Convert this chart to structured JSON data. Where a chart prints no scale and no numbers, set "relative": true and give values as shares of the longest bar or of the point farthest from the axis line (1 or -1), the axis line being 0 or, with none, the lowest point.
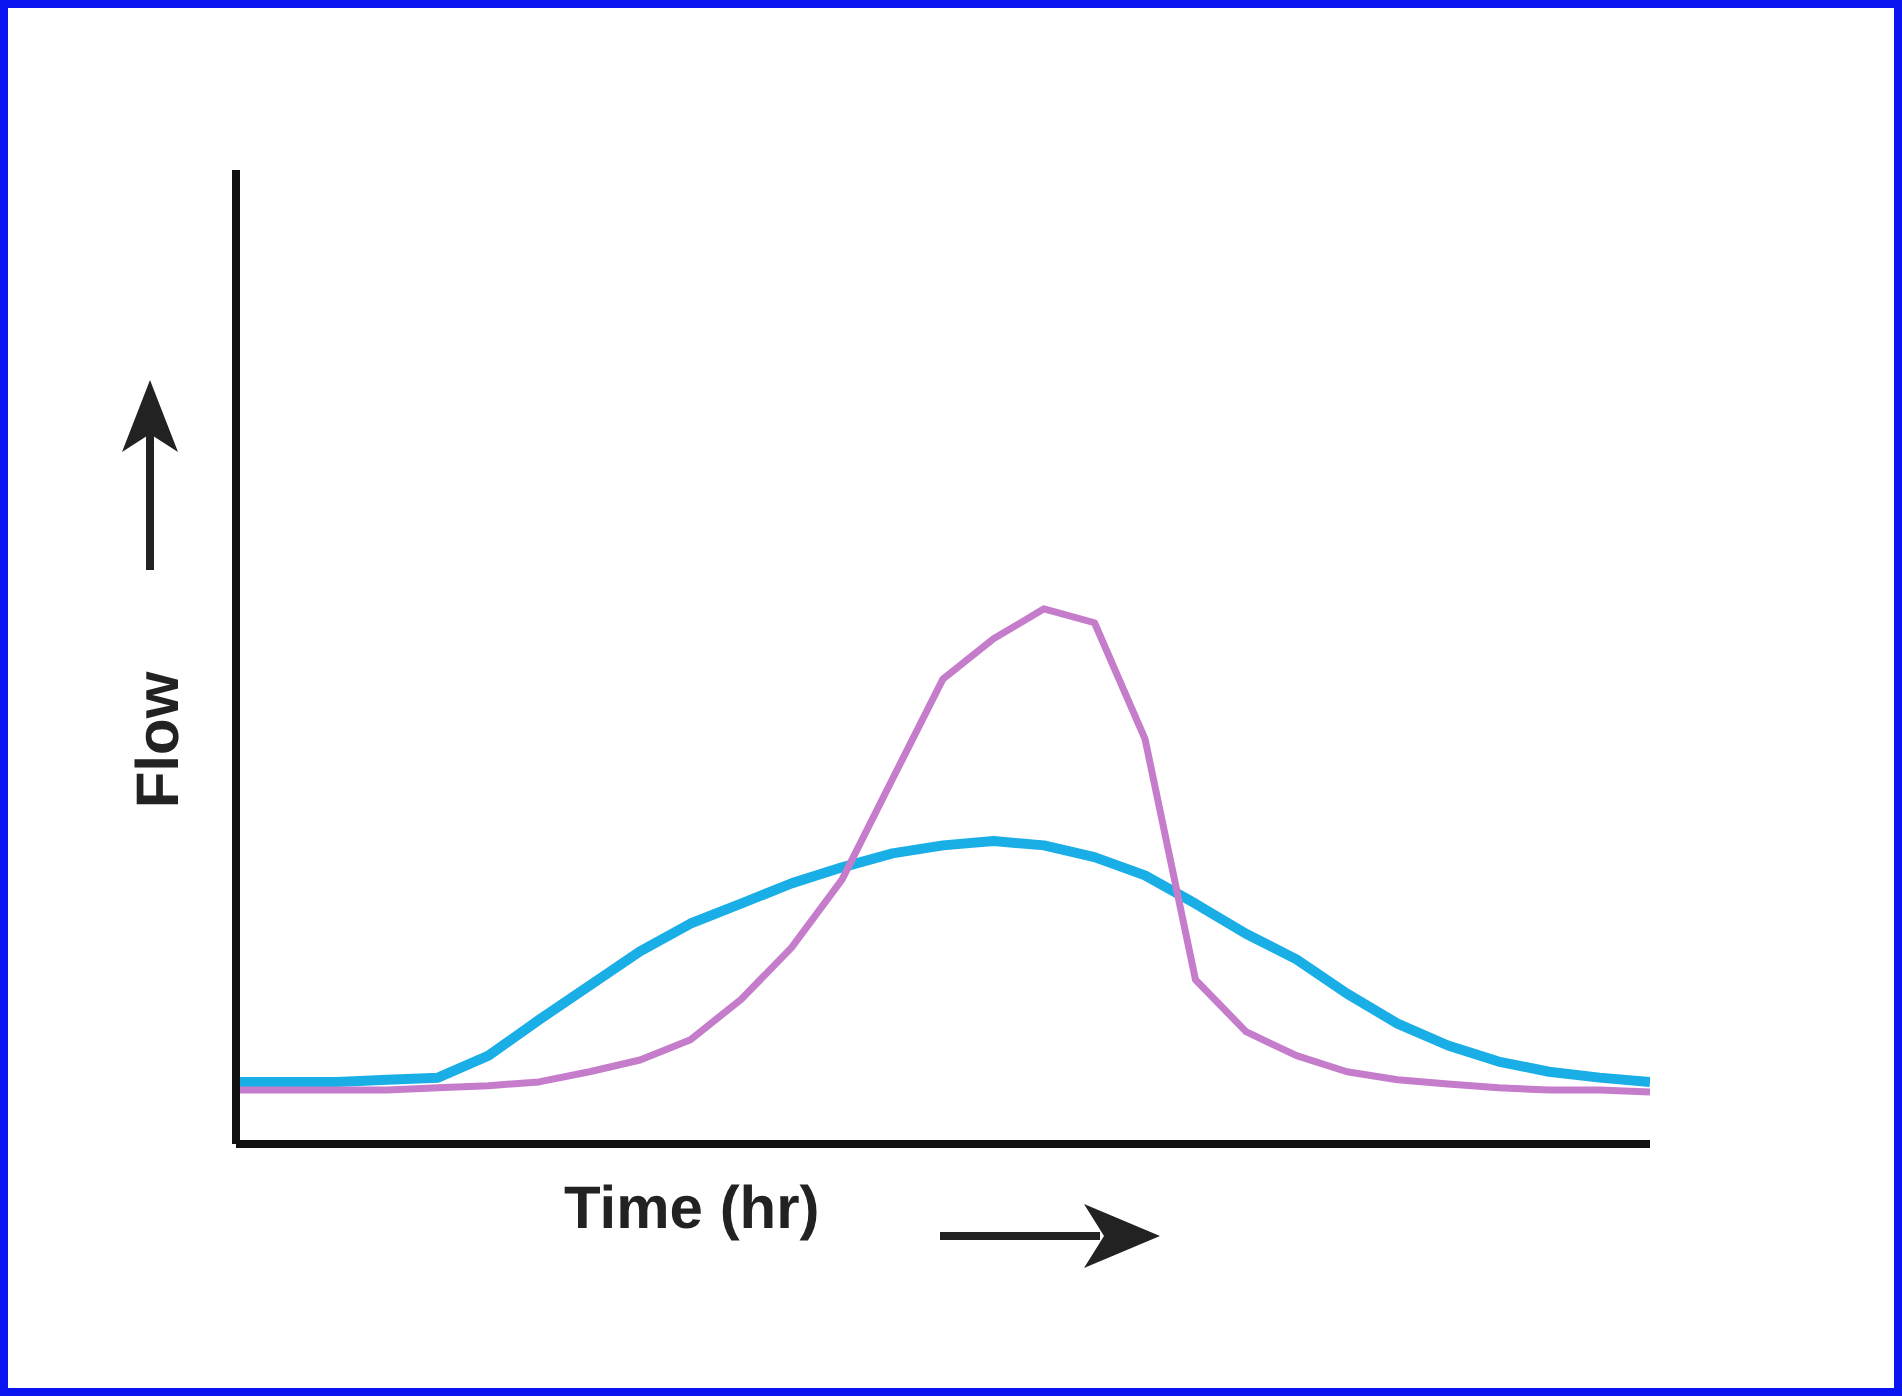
{
  "chart_data": {
    "type": "line",
    "relative": true,
    "xlabel": "Time (hr)",
    "ylabel": "Flow",
    "categories": [
      null,
      null,
      null,
      null,
      null,
      null,
      null,
      null,
      null,
      null,
      null,
      null,
      null,
      null,
      null,
      null,
      null,
      null,
      null,
      null,
      null,
      null,
      null,
      null,
      null,
      null,
      null,
      null,
      null
    ],
    "series": [
      {
        "color": "#1aaee6",
        "values": [
          0.116,
          0.116,
          0.116,
          0.12,
          0.124,
          0.165,
          0.232,
          0.296,
          0.36,
          0.412,
          0.449,
          0.487,
          0.517,
          0.543,
          0.558,
          0.566,
          0.558,
          0.536,
          0.502,
          0.449,
          0.393,
          0.345,
          0.281,
          0.225,
          0.184,
          0.154,
          0.135,
          0.124,
          0.116
        ]
      },
      {
        "color": "#c57ccb",
        "values": [
          0.101,
          0.101,
          0.101,
          0.101,
          0.105,
          0.109,
          0.116,
          0.135,
          0.157,
          0.195,
          0.27,
          0.367,
          0.494,
          0.682,
          0.869,
          0.944,
          1.0,
          0.974,
          0.757,
          0.307,
          0.21,
          0.165,
          0.135,
          0.12,
          0.112,
          0.105,
          0.101,
          0.101,
          0.097
        ]
      }
    ],
    "grid": false,
    "legend": false,
    "marker": "none",
    "line_style": "solid"
  }
}
